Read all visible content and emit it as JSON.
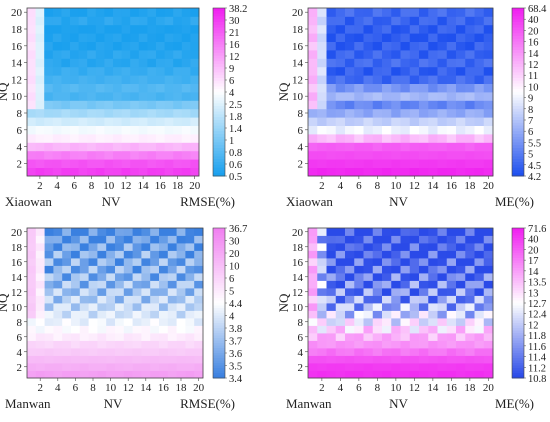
{
  "chart_data": [
    {
      "type": "heatmap",
      "site": "Xiaowan",
      "xlabel": "NV",
      "ylabel": "NQ",
      "metric": "RMSE(%)",
      "x_ticks": [
        "2",
        "4",
        "6",
        "8",
        "10",
        "12",
        "14",
        "16",
        "18",
        "20"
      ],
      "y_ticks": [
        "2",
        "4",
        "6",
        "8",
        "10",
        "12",
        "14",
        "16",
        "18",
        "20"
      ],
      "x_range": [
        1,
        20
      ],
      "y_range": [
        1,
        20
      ],
      "colorbar_ticks": [
        "38.2",
        "30",
        "21",
        "16",
        "12",
        "9",
        "6",
        "4",
        "2.5",
        "1.8",
        "1.4",
        "1",
        "0.8",
        "0.6",
        "0.5"
      ],
      "colors": [
        "#f020f0",
        "#ffffff",
        "#1aa0ee"
      ],
      "row_values": {
        "1": 30,
        "2": 24,
        "3": 16,
        "4": 10,
        "5": 5,
        "6": 3.5,
        "7": 2.2,
        "8": 1.5,
        "9": 1.0,
        "10": 0.7,
        "11": 0.75,
        "12": 0.65,
        "13": 0.6,
        "14": 0.55,
        "15": 0.55,
        "16": 0.52,
        "17": 0.52,
        "18": 0.5,
        "19": 0.55,
        "20": 0.52
      },
      "left_columns": {
        "1": 6,
        "2": 2.5
      }
    },
    {
      "type": "heatmap",
      "site": "Xiaowan",
      "xlabel": "NV",
      "ylabel": "NQ",
      "metric": "ME(%)",
      "x_ticks": [
        "2",
        "4",
        "6",
        "8",
        "10",
        "12",
        "14",
        "16",
        "18",
        "20"
      ],
      "y_ticks": [
        "2",
        "4",
        "6",
        "8",
        "10",
        "12",
        "14",
        "16",
        "18",
        "20"
      ],
      "x_range": [
        1,
        20
      ],
      "y_range": [
        1,
        20
      ],
      "colorbar_ticks": [
        "68.4",
        "40",
        "20",
        "16",
        "14",
        "12",
        "11",
        "10",
        "9",
        "8",
        "7",
        "6",
        "5.5",
        "5",
        "4.5",
        "4.2"
      ],
      "colors": [
        "#f020f0",
        "#ffffff",
        "#1f50ee"
      ],
      "row_values": {
        "1": 60,
        "2": 45,
        "3": 30,
        "4": 20,
        "5": 12,
        "6": 9,
        "7": 7.5,
        "8": 6,
        "9": 5.2,
        "10": 6.5,
        "11": 5.5,
        "12": 4.6,
        "13": 4.4,
        "14": 4.6,
        "15": 4.5,
        "16": 4.4,
        "17": 4.3,
        "18": 4.4,
        "19": 4.5,
        "20": 4.6
      },
      "left_columns": {
        "1": 12,
        "2": 8
      }
    },
    {
      "type": "heatmap",
      "site": "Manwan",
      "xlabel": "NV",
      "ylabel": "NQ",
      "metric": "RMSE(%)",
      "x_ticks": [
        "2",
        "4",
        "6",
        "8",
        "10",
        "12",
        "14",
        "16",
        "18",
        "20"
      ],
      "y_ticks": [
        "2",
        "4",
        "6",
        "8",
        "10",
        "12",
        "14",
        "16",
        "18",
        "20"
      ],
      "x_range": [
        1,
        20
      ],
      "y_range": [
        1,
        20
      ],
      "colorbar_ticks": [
        "36.7",
        "30",
        "20",
        "10",
        "6",
        "5",
        "4.4",
        "4",
        "3.8",
        "3.7",
        "3.6",
        "3.5",
        "3.4"
      ],
      "colors": [
        "#f080f0",
        "#ffffff",
        "#3a80e0"
      ],
      "row_values": {
        "1": 25,
        "2": 18,
        "3": 12,
        "4": 8,
        "5": 6,
        "6": 5,
        "7": 4.5,
        "8": 4.2,
        "9": 4.0,
        "10": 3.9,
        "11": 3.8,
        "12": 3.75,
        "13": 3.7,
        "14": 3.65,
        "15": 3.62,
        "16": 3.6,
        "17": 3.58,
        "18": 3.55,
        "19": 3.5,
        "20": 3.45
      },
      "left_columns": {
        "1": 8,
        "2": 5
      }
    },
    {
      "type": "heatmap",
      "site": "Manwan",
      "xlabel": "NV",
      "ylabel": "NQ",
      "metric": "ME(%)",
      "x_ticks": [
        "2",
        "4",
        "6",
        "8",
        "10",
        "12",
        "14",
        "16",
        "18",
        "20"
      ],
      "y_ticks": [
        "2",
        "4",
        "6",
        "8",
        "10",
        "12",
        "14",
        "16",
        "18",
        "20"
      ],
      "x_range": [
        1,
        20
      ],
      "y_range": [
        1,
        20
      ],
      "colorbar_ticks": [
        "71.6",
        "40",
        "20",
        "17",
        "14",
        "13.5",
        "13",
        "12.7",
        "12.4",
        "12",
        "11.8",
        "11.6",
        "11.4",
        "11.2",
        "10.8"
      ],
      "colors": [
        "#f020f0",
        "#ffffff",
        "#2a4ae8"
      ],
      "row_values": {
        "1": 55,
        "2": 45,
        "3": 28,
        "4": 18,
        "5": 15,
        "6": 14,
        "7": 13.2,
        "8": 12.6,
        "9": 12.2,
        "10": 11.9,
        "11": 11.6,
        "12": 11.4,
        "13": 11.3,
        "14": 11.2,
        "15": 11.1,
        "16": 11.05,
        "17": 11.0,
        "18": 10.95,
        "19": 10.9,
        "20": 10.85
      },
      "left_columns": {
        "1": 14,
        "2": 12
      }
    }
  ]
}
